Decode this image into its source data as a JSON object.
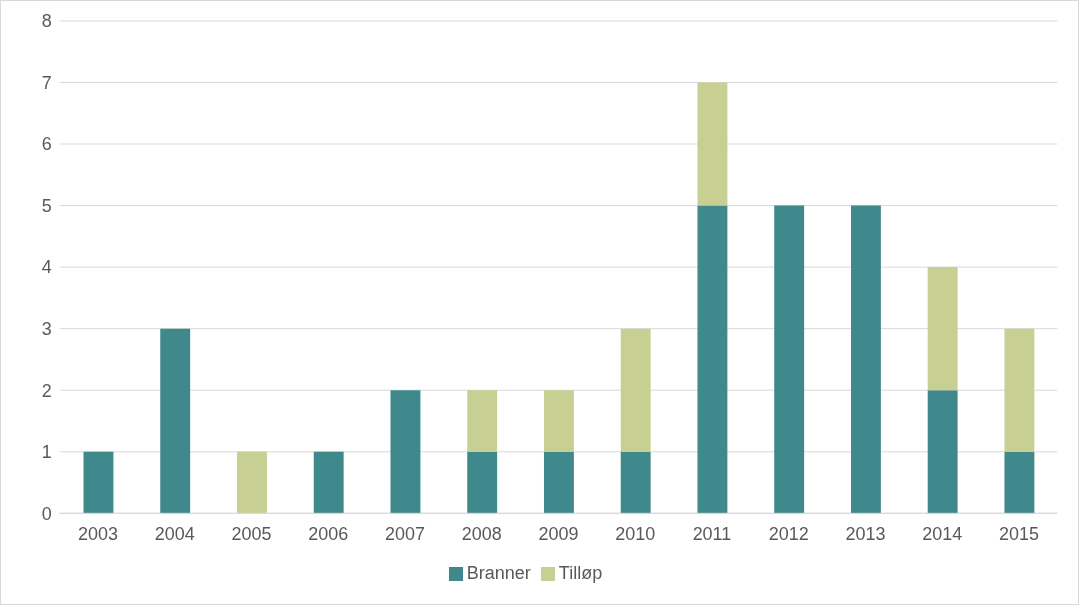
{
  "chart_data": {
    "type": "bar",
    "stacked": true,
    "categories": [
      "2003",
      "2004",
      "2005",
      "2006",
      "2007",
      "2008",
      "2009",
      "2010",
      "2011",
      "2012",
      "2013",
      "2014",
      "2015"
    ],
    "series": [
      {
        "name": "Branner",
        "color": "#3f888b",
        "values": [
          1,
          3,
          0,
          1,
          2,
          1,
          1,
          1,
          5,
          5,
          5,
          2,
          1
        ]
      },
      {
        "name": "Tilløp",
        "color": "#c8cf92",
        "values": [
          0,
          0,
          1,
          0,
          0,
          1,
          1,
          2,
          2,
          0,
          0,
          2,
          2
        ]
      }
    ],
    "ylim": [
      0,
      8
    ],
    "yticks": [
      0,
      1,
      2,
      3,
      4,
      5,
      6,
      7,
      8
    ],
    "grid": "y",
    "legend": "bottom"
  }
}
